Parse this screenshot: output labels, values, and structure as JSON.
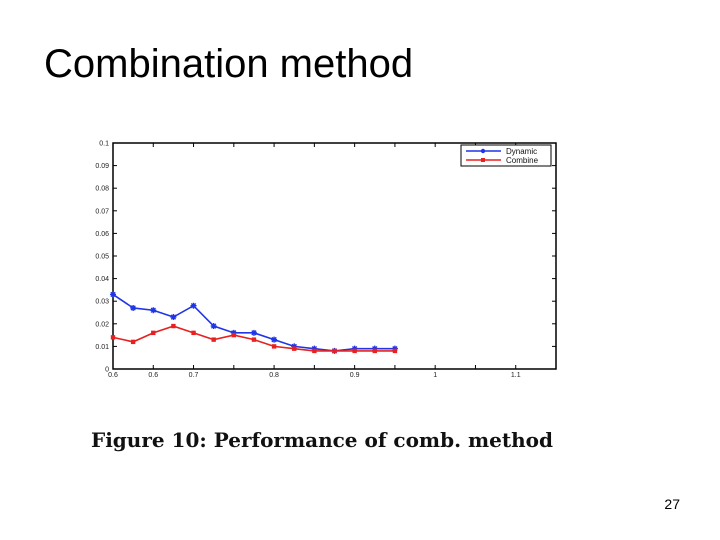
{
  "slide": {
    "title": "Combination method",
    "page_number": "27"
  },
  "figure": {
    "caption": "Figure 10:  Performance of comb.  method"
  },
  "chart_data": {
    "type": "line",
    "title": "",
    "xlabel": "",
    "ylabel": "",
    "xlim": [
      0.6,
      1.15
    ],
    "ylim": [
      0,
      0.1
    ],
    "xticks": [
      "0.6",
      "0.65",
      "0.7",
      "0.75",
      "0.8",
      "0.85",
      "0.9",
      "0.95",
      "1",
      "1.05",
      "1.1"
    ],
    "xticks_labeled": [
      "0.6",
      "0.6",
      "0.7",
      "0.8",
      "0.9",
      "1",
      "1.1"
    ],
    "yticks": [
      "0",
      "0.01",
      "0.02",
      "0.03",
      "0.04",
      "0.05",
      "0.06",
      "0.07",
      "0.08",
      "0.09",
      "0.1"
    ],
    "grid": false,
    "legend_position": "top-right",
    "x": [
      0.6,
      0.625,
      0.65,
      0.675,
      0.7,
      0.725,
      0.75,
      0.775,
      0.8,
      0.825,
      0.85,
      0.875,
      0.9,
      0.925,
      0.95
    ],
    "series": [
      {
        "name": "Dynamic",
        "color": "#1f35e8",
        "values": [
          0.033,
          0.027,
          0.026,
          0.023,
          0.028,
          0.019,
          0.016,
          0.016,
          0.013,
          0.01,
          0.009,
          0.008,
          0.009,
          0.009,
          0.009
        ]
      },
      {
        "name": "Combine",
        "color": "#e8201f",
        "values": [
          0.014,
          0.012,
          0.016,
          0.019,
          0.016,
          0.013,
          0.015,
          0.013,
          0.01,
          0.009,
          0.008,
          0.008,
          0.008,
          0.008,
          0.008
        ]
      }
    ]
  }
}
